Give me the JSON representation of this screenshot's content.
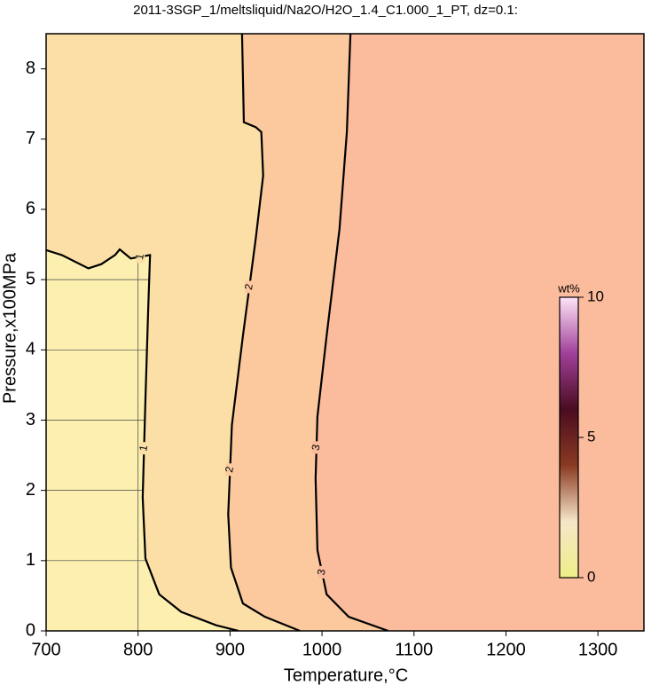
{
  "chart_data": {
    "type": "contour",
    "title": "2011-3SGP_1/meltsliquid/Na2O/H2O_1.4_C1.000_1_PT, dz=0.1:",
    "x_label": "Temperature,°C",
    "y_label": "Pressure,x100MPa",
    "xlim": [
      700,
      1350
    ],
    "ylim": [
      0,
      8.5
    ],
    "xticks": [
      700,
      800,
      900,
      1000,
      1100,
      1200,
      1300
    ],
    "yticks": [
      0,
      1,
      2,
      3,
      4,
      5,
      6,
      7,
      8
    ],
    "grid": true,
    "background_color": "#fcefb0",
    "series": [
      {
        "name": "1",
        "color": "#000000",
        "fill": "#fbdfa6",
        "x": [
          700,
          717,
          746,
          760,
          775,
          780,
          792,
          813,
          811,
          808,
          805,
          808,
          823,
          847,
          885,
          909
        ],
        "y": [
          5.42,
          5.35,
          5.16,
          5.22,
          5.35,
          5.43,
          5.3,
          5.35,
          4.58,
          3.3,
          1.9,
          1.03,
          0.52,
          0.27,
          0.08,
          0
        ]
      },
      {
        "name": "2",
        "color": "#000000",
        "fill": "#fcc99e",
        "x": [
          913,
          915,
          928,
          934,
          936,
          928,
          914,
          902,
          898,
          901,
          914,
          938,
          976
        ],
        "y": [
          8.53,
          7.24,
          7.17,
          7.1,
          6.48,
          5.59,
          4.2,
          2.93,
          1.66,
          0.9,
          0.39,
          0.2,
          0
        ]
      },
      {
        "name": "3",
        "color": "#000000",
        "fill": "#fbbb9d",
        "x": [
          1031,
          1027,
          1019,
          1005,
          995,
          993,
          995,
          1005,
          1029,
          1072
        ],
        "y": [
          8.53,
          7.1,
          5.72,
          4.2,
          3.05,
          2.17,
          1.15,
          0.52,
          0.2,
          0
        ]
      }
    ],
    "colorbar": {
      "label": "wt%",
      "lim": [
        0,
        10
      ],
      "ticks": [
        0,
        5,
        10
      ],
      "colors": [
        "#eeee88",
        "#f6e6c8",
        "#8a3a22",
        "#4a0c20",
        "#a0409a",
        "#ffe4f8"
      ]
    }
  }
}
